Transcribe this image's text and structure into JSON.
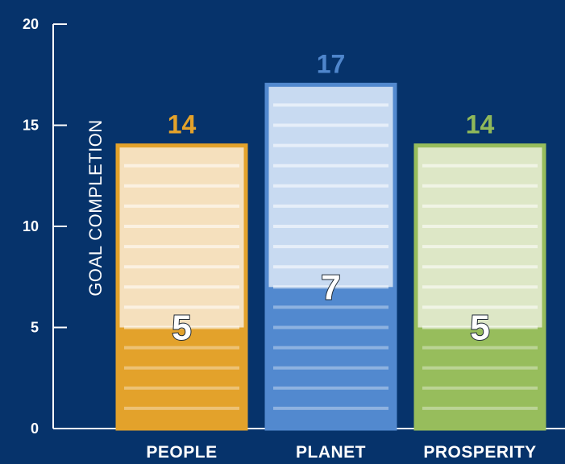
{
  "chart_data": {
    "type": "bar",
    "ylabel": "GOAL COMPLETION",
    "ylim": [
      0,
      20
    ],
    "yticks": [
      0,
      5,
      10,
      15,
      20
    ],
    "categories": [
      "PEOPLE",
      "PLANET",
      "PROSPERITY"
    ],
    "series": [
      {
        "values": [
          14,
          17,
          14
        ]
      },
      {
        "values": [
          5,
          7,
          5
        ]
      }
    ],
    "colors": {
      "background": "#06336b",
      "people": {
        "solid": "#e3a22b",
        "light": "#f5e0bd",
        "label": "#e3a22b"
      },
      "planet": {
        "solid": "#5289cf",
        "light": "#c8daf1",
        "label": "#4f86cc"
      },
      "prosperity": {
        "solid": "#97bd5c",
        "light": "#dde7c6",
        "label": "#8fb85a"
      }
    },
    "grid": false
  }
}
